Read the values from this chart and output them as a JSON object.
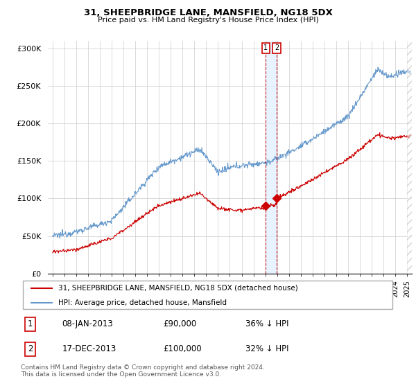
{
  "title": "31, SHEEPBRIDGE LANE, MANSFIELD, NG18 5DX",
  "subtitle": "Price paid vs. HM Land Registry's House Price Index (HPI)",
  "ylabel_ticks": [
    "£0",
    "£50K",
    "£100K",
    "£150K",
    "£200K",
    "£250K",
    "£300K"
  ],
  "ytick_values": [
    0,
    50000,
    100000,
    150000,
    200000,
    250000,
    300000
  ],
  "ylim": [
    0,
    310000
  ],
  "xlim_start": 1994.6,
  "xlim_end": 2025.4,
  "red_color": "#cc0000",
  "blue_color": "#6699cc",
  "dashed_line_color": "#cc0000",
  "legend1": "31, SHEEPBRIDGE LANE, MANSFIELD, NG18 5DX (detached house)",
  "legend2": "HPI: Average price, detached house, Mansfield",
  "transaction1_date": "08-JAN-2013",
  "transaction1_price": "£90,000",
  "transaction1_hpi": "36% ↓ HPI",
  "transaction2_date": "17-DEC-2013",
  "transaction2_price": "£100,000",
  "transaction2_hpi": "32% ↓ HPI",
  "footnote1": "Contains HM Land Registry data © Crown copyright and database right 2024.",
  "footnote2": "This data is licensed under the Open Government Licence v3.0.",
  "marker1_x": 2013.03,
  "marker1_y": 90000,
  "marker2_x": 2013.96,
  "marker2_y": 100000,
  "vline1_x": 2013.03,
  "vline2_x": 2013.96,
  "shade_color": "#ddeeff",
  "hatch_start": 2025.0
}
